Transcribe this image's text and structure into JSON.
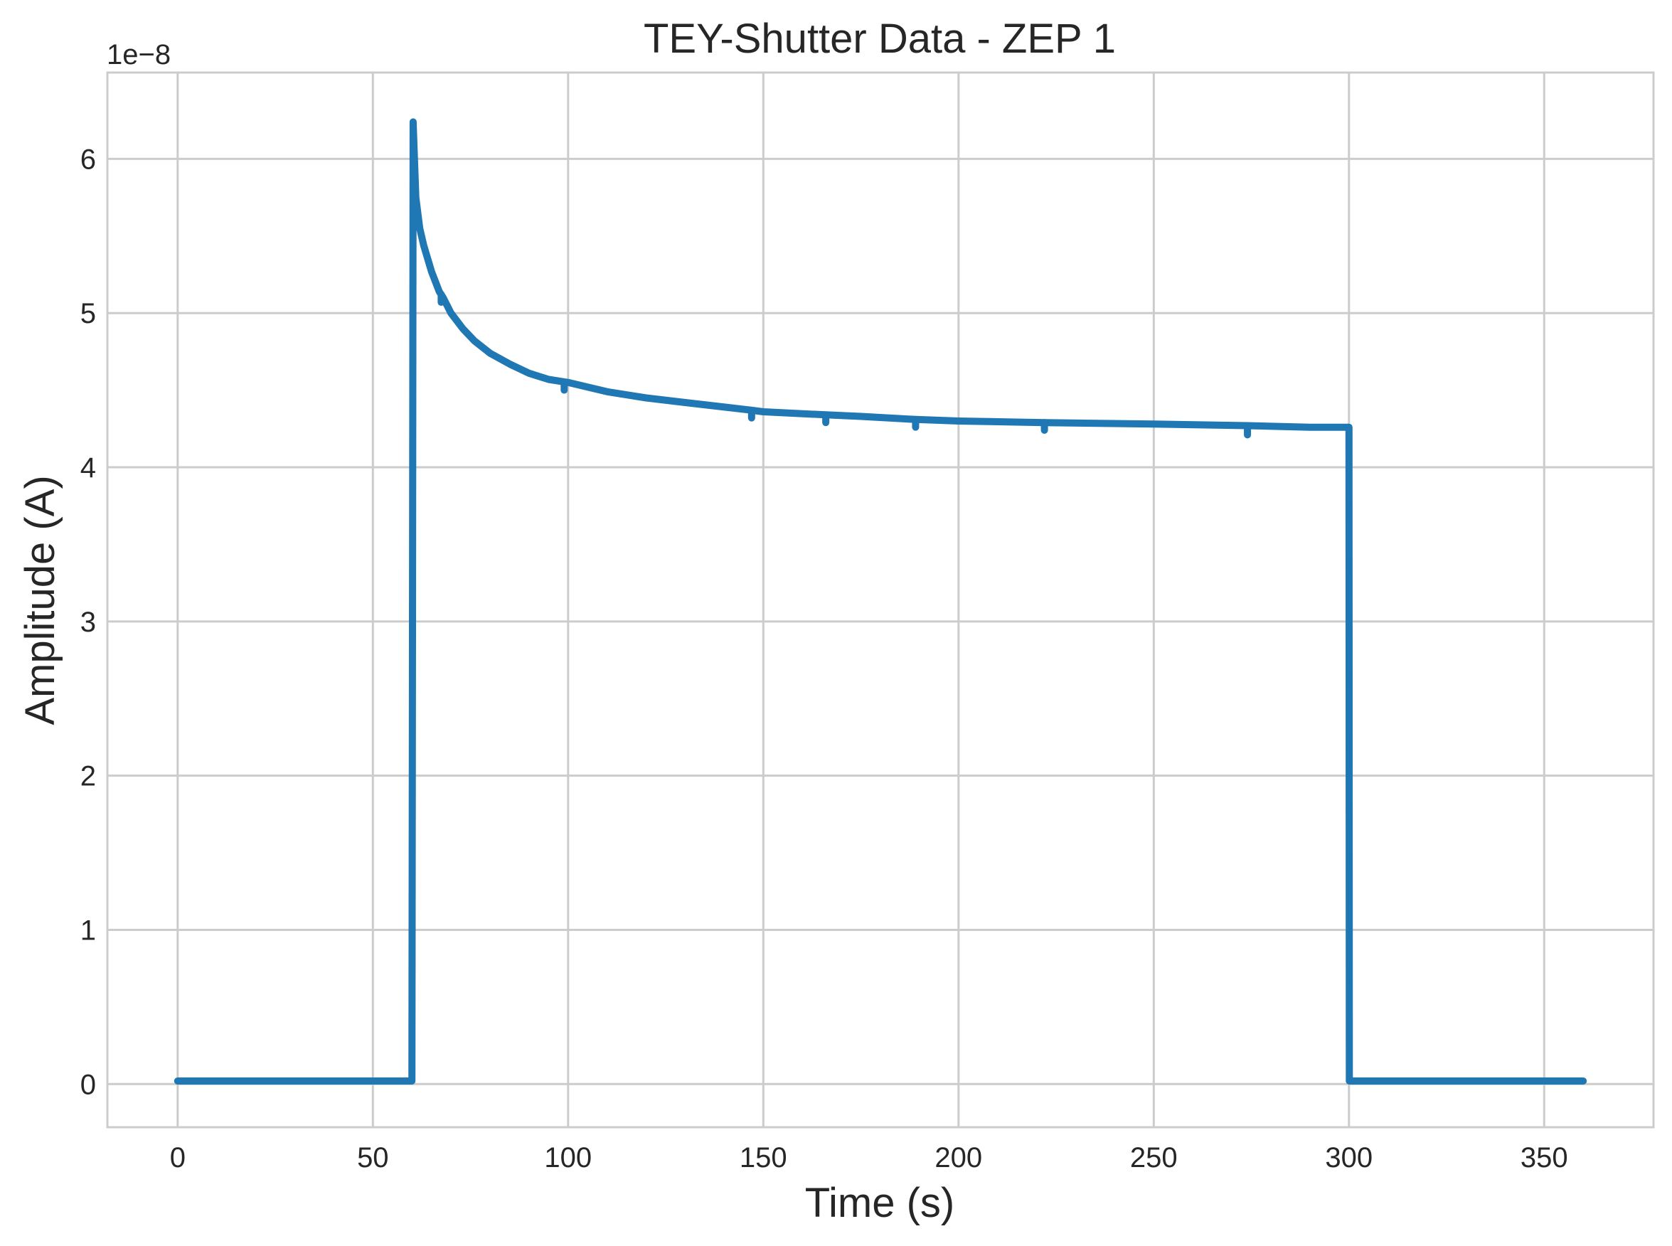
{
  "chart_data": {
    "type": "line",
    "title": "TEY-Shutter Data - ZEP 1",
    "xlabel": "Time (s)",
    "ylabel": "Amplitude (A)",
    "y_offset_label": "1e−8",
    "xlim": [
      -18,
      378
    ],
    "ylim": [
      -0.28,
      6.56
    ],
    "y_scale_note": "values in units of 1e-8 A",
    "x_ticks": [
      0,
      50,
      100,
      150,
      200,
      250,
      300,
      350
    ],
    "x_tick_labels": [
      "0",
      "50",
      "100",
      "150",
      "200",
      "250",
      "300",
      "350"
    ],
    "y_ticks": [
      0,
      1,
      2,
      3,
      4,
      5,
      6
    ],
    "y_tick_labels": [
      "0",
      "1",
      "2",
      "3",
      "4",
      "5",
      "6"
    ],
    "grid": true,
    "legend": "none",
    "colors": {
      "series": "#1f77b4",
      "grid": "#cccccc",
      "text": "#262626"
    },
    "series": [
      {
        "x": [
          0,
          30,
          59.9,
          60,
          60.3,
          61,
          62,
          63,
          65,
          67,
          68,
          70,
          73,
          76,
          80,
          85,
          90,
          95,
          100,
          110,
          120,
          130,
          147,
          150,
          166,
          175,
          189,
          200,
          222,
          250,
          274,
          290,
          300,
          300.1,
          330,
          360
        ],
        "y": [
          0.02,
          0.02,
          0.02,
          0.02,
          6.24,
          5.75,
          5.55,
          5.44,
          5.27,
          5.14,
          5.1,
          5.0,
          4.9,
          4.82,
          4.74,
          4.67,
          4.61,
          4.57,
          4.55,
          4.49,
          4.45,
          4.42,
          4.37,
          4.36,
          4.34,
          4.33,
          4.31,
          4.3,
          4.29,
          4.28,
          4.27,
          4.26,
          4.26,
          0.02,
          0.02,
          0.02
        ]
      }
    ],
    "dips": [
      {
        "x": 67.5,
        "y_top": 5.12,
        "y_bottom": 5.07
      },
      {
        "x": 99,
        "y_top": 4.55,
        "y_bottom": 4.5
      },
      {
        "x": 147,
        "y_top": 4.37,
        "y_bottom": 4.32
      },
      {
        "x": 166,
        "y_top": 4.34,
        "y_bottom": 4.29
      },
      {
        "x": 189,
        "y_top": 4.31,
        "y_bottom": 4.26
      },
      {
        "x": 222,
        "y_top": 4.29,
        "y_bottom": 4.24
      },
      {
        "x": 274,
        "y_top": 4.27,
        "y_bottom": 4.21
      }
    ]
  }
}
